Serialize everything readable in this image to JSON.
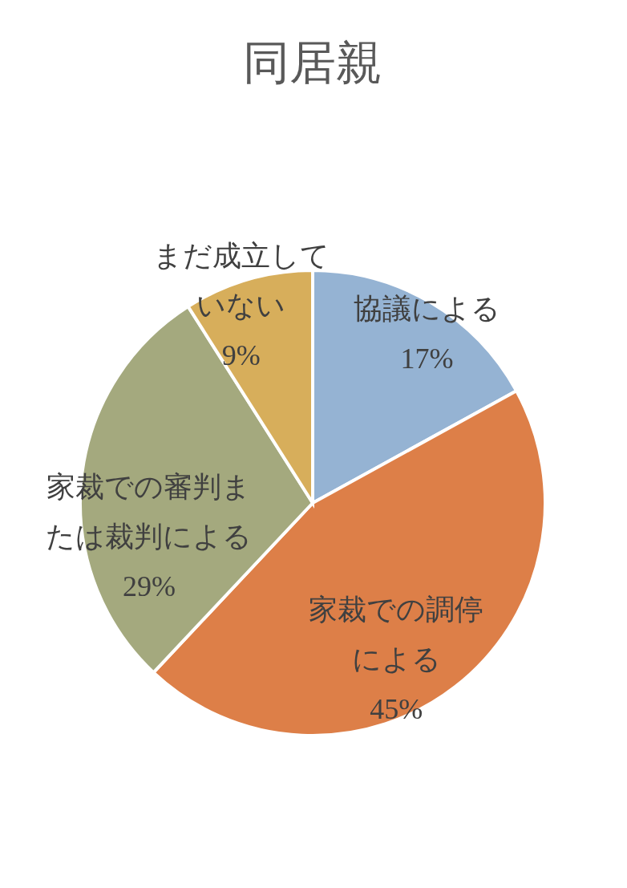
{
  "chart_data": {
    "type": "pie",
    "title": "同居親",
    "categories": [
      "協議による",
      "家裁での調停による",
      "家裁での審判または裁判による",
      "まだ成立していない"
    ],
    "values": [
      17,
      45,
      29,
      9
    ],
    "colors": [
      "#95b3d3",
      "#dd7f48",
      "#a4a97e",
      "#d7ae5b"
    ],
    "value_labels": [
      "17%",
      "45%",
      "29%",
      "9%"
    ],
    "legend": false
  }
}
